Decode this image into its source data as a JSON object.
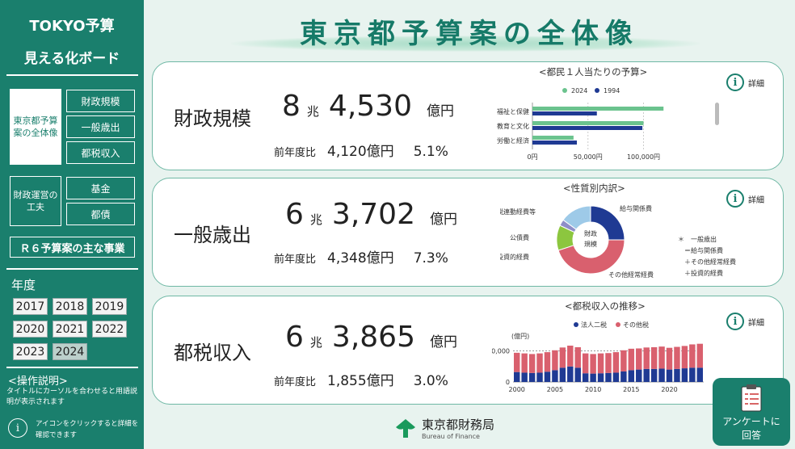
{
  "sidebar": {
    "title1": "TOKYO予算",
    "title2": "見える化ボード",
    "nav_overall": "東京都予算案の全体像",
    "nav_zaisei": "財政規模",
    "nav_ippan": "一般歳出",
    "nav_tozei": "都税収入",
    "nav_kufu": "財政運営の工夫",
    "nav_kikin": "基金",
    "nav_tosai": "都債",
    "nav_r6": "Ｒ６予算案の主な事業",
    "year_title": "年度",
    "years": [
      "2017",
      "2018",
      "2019",
      "2020",
      "2021",
      "2022",
      "2023",
      "2024"
    ],
    "selected_year": "2024",
    "help_title": "<操作説明>",
    "help_text": "タイトルにカーソルを合わせると用語説明が表示されます",
    "help_icon_text": "アイコンをクリックすると詳細を確認できます"
  },
  "main": {
    "title": "東京都予算案の全体像",
    "detail_label": "詳細",
    "cards": [
      {
        "label": "財政規模",
        "num1": "8",
        "unit1": "兆",
        "num2": "4,530",
        "unit2": "億円",
        "compare_label": "前年度比",
        "compare_value": "4,120億円",
        "compare_pct": "5.1%"
      },
      {
        "label": "一般歳出",
        "num1": "6",
        "unit1": "兆",
        "num2": "3,702",
        "unit2": "億円",
        "compare_label": "前年度比",
        "compare_value": "4,348億円",
        "compare_pct": "7.3%"
      },
      {
        "label": "都税収入",
        "num1": "6",
        "unit1": "兆",
        "num2": "3,865",
        "unit2": "億円",
        "compare_label": "前年度比",
        "compare_value": "1,855億円",
        "compare_pct": "3.0%"
      }
    ],
    "footer": {
      "org": "東京都財務局",
      "org_en": "Bureau of Finance"
    },
    "survey": {
      "label1": "アンケートに",
      "label2": "回答"
    }
  },
  "colors": {
    "primary": "#1a7f6d",
    "green_bar": "#6bc38e",
    "navy": "#1f3a93",
    "red": "#d9606e",
    "lightblue": "#9ecae8",
    "lightgreen": "#8cc63f",
    "purple": "#8e8ec8"
  },
  "chart_data": [
    {
      "type": "bar",
      "orientation": "horizontal",
      "title": "<都民１人当たりの予算>",
      "categories": [
        "福祉と保健",
        "教育と文化",
        "労働と経済"
      ],
      "series": [
        {
          "name": "2024",
          "values": [
            118000,
            100000,
            37000
          ]
        },
        {
          "name": "1994",
          "values": [
            58000,
            99000,
            40000
          ]
        }
      ],
      "xlim": [
        0,
        120000
      ],
      "xticks": [
        "0円",
        "50,000円",
        "100,000円"
      ],
      "legend": "top"
    },
    {
      "type": "pie",
      "title": "<性質別内訳>",
      "center_label": [
        "財政",
        "規模"
      ],
      "slices": [
        {
          "name": "給与関係費",
          "value": 25
        },
        {
          "name": "その他経常経費",
          "value": 45
        },
        {
          "name": "投資的経費",
          "value": 12
        },
        {
          "name": "公債費",
          "value": 3
        },
        {
          "name": "税連動経費等",
          "value": 15
        }
      ],
      "note": [
        "＊　一般歳出",
        "＝給与関係費",
        "＋その他経常経費",
        "＋投資的経費"
      ]
    },
    {
      "type": "bar",
      "stacked": true,
      "title": "<都税収入の推移>",
      "ylabel": "(億円)",
      "series": [
        {
          "name": "法人二税",
          "values": [
            16000,
            15000,
            14500,
            15000,
            16500,
            19000,
            23000,
            25000,
            23000,
            14000,
            13500,
            14000,
            14500,
            15000,
            17000,
            19000,
            20000,
            21000,
            21000,
            21500,
            20000,
            21000,
            22000,
            23000,
            23000
          ]
        },
        {
          "name": "その他税",
          "values": [
            31000,
            31000,
            30500,
            31000,
            31500,
            32000,
            32500,
            33500,
            33000,
            32000,
            31500,
            32000,
            32000,
            33000,
            34000,
            34500,
            34000,
            34500,
            35000,
            35500,
            35000,
            35500,
            36000,
            37500,
            38500
          ]
        }
      ],
      "x": [
        "2000",
        "2001",
        "2002",
        "2003",
        "2004",
        "2005",
        "2006",
        "2007",
        "2008",
        "2009",
        "2010",
        "2011",
        "2012",
        "2013",
        "2014",
        "2015",
        "2016",
        "2017",
        "2018",
        "2019",
        "2020",
        "2021",
        "2022",
        "2023",
        "2024"
      ],
      "xticks": [
        "2000",
        "2005",
        "2010",
        "2015",
        "2020"
      ],
      "ylim": [
        0,
        65000
      ],
      "yticks": [
        "0",
        "50,000"
      ],
      "legend": "top"
    }
  ]
}
